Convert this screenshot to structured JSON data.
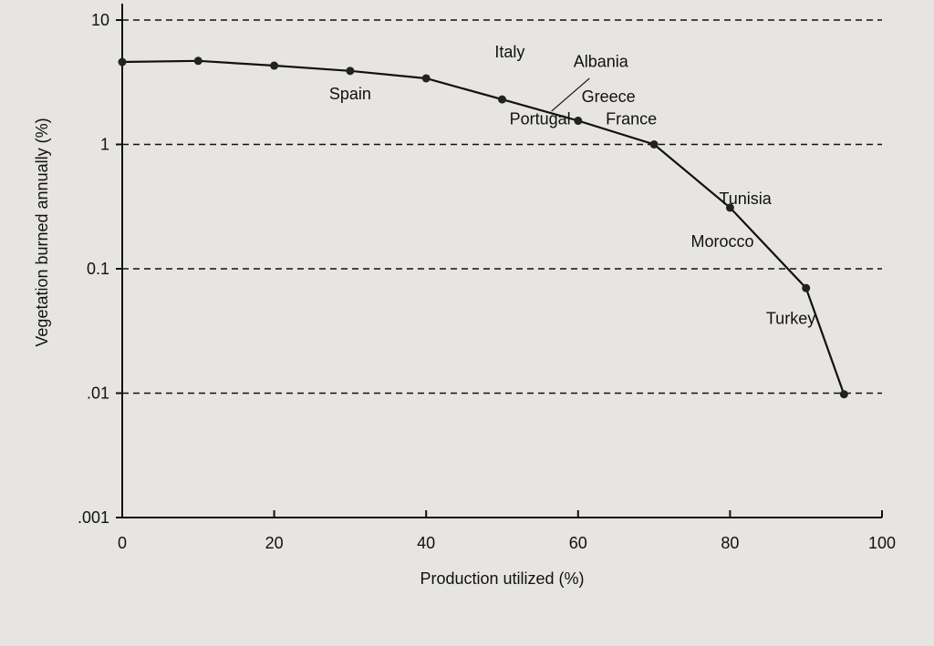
{
  "chart_data": {
    "type": "line",
    "title": "",
    "xlabel": "Production utilized (%)",
    "ylabel": "Vegetation burned annually (%)",
    "xlim": [
      0,
      100
    ],
    "ylim": [
      0.001,
      10
    ],
    "yscale": "log",
    "x_ticks": [
      0,
      20,
      40,
      60,
      80,
      100
    ],
    "x_tick_labels": [
      "0",
      "20",
      "40",
      "60",
      "80",
      "100"
    ],
    "y_ticks": [
      0.001,
      0.01,
      0.1,
      1,
      10
    ],
    "y_tick_labels": [
      ".001",
      ".01",
      "0.1",
      "1",
      "10"
    ],
    "grid": "horizontal-dashed",
    "series": [
      {
        "points": [
          {
            "x": 0,
            "y": 4.6
          },
          {
            "x": 10,
            "y": 4.7
          },
          {
            "x": 20,
            "y": 4.3
          },
          {
            "x": 30,
            "y": 3.9
          },
          {
            "x": 40,
            "y": 3.4
          },
          {
            "x": 50,
            "y": 2.3
          },
          {
            "x": 60,
            "y": 1.55
          },
          {
            "x": 70,
            "y": 1.0
          },
          {
            "x": 80,
            "y": 0.31
          },
          {
            "x": 90,
            "y": 0.07
          },
          {
            "x": 95,
            "y": 0.0098
          }
        ]
      }
    ],
    "annotations": [
      {
        "text": "Spain",
        "x": 30,
        "y": 2.3
      },
      {
        "text": "Italy",
        "x": 51,
        "y": 5.0
      },
      {
        "text": "Albania",
        "x": 63,
        "y": 4.2
      },
      {
        "text": "Greece",
        "x": 64,
        "y": 2.2
      },
      {
        "text": "Portugal",
        "x": 55,
        "y": 1.45
      },
      {
        "text": "France",
        "x": 67,
        "y": 1.45
      },
      {
        "text": "Tunisia",
        "x": 82,
        "y": 0.33
      },
      {
        "text": "Morocco",
        "x": 79,
        "y": 0.15
      },
      {
        "text": "Turkey",
        "x": 88,
        "y": 0.036
      }
    ]
  }
}
